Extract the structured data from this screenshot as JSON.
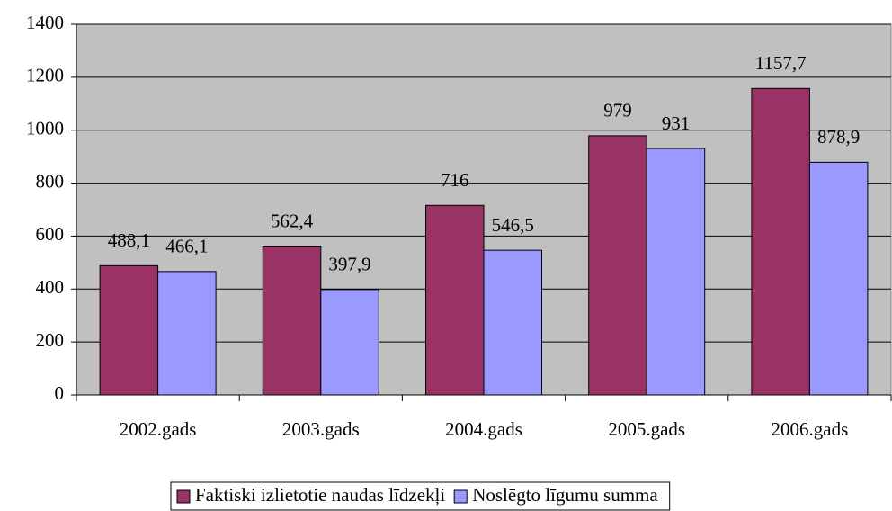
{
  "chart_data": {
    "type": "bar",
    "categories": [
      "2002.gads",
      "2003.gads",
      "2004.gads",
      "2005.gads",
      "2006.gads"
    ],
    "series": [
      {
        "name": "Faktiski izlietotie naudas līdzekļi",
        "color": "#993366",
        "values": [
          488.1,
          562.4,
          716,
          979,
          1157.7
        ],
        "value_labels": [
          "488,1",
          "562,4",
          "716",
          "979",
          "1157,7"
        ]
      },
      {
        "name": "Noslēgto līgumu summa",
        "color": "#9999ff",
        "values": [
          466.1,
          397.9,
          546.5,
          931,
          878.9
        ],
        "value_labels": [
          "466,1",
          "397,9",
          "546,5",
          "931",
          "878,9"
        ]
      }
    ],
    "ylim": [
      0,
      1400
    ],
    "yticks": [
      0,
      200,
      400,
      600,
      800,
      1000,
      1200,
      1400
    ],
    "grid": true,
    "legend": "bottom"
  }
}
